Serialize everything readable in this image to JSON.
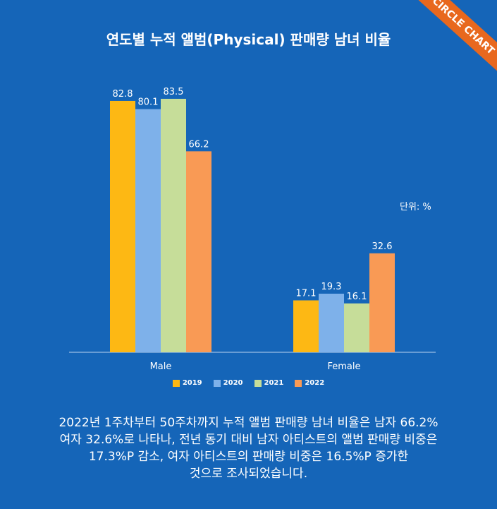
{
  "header": {
    "title": "연도별 누적 앨범(Physical) 판매량 남녀 비율",
    "brand": "CIRCLE CHART"
  },
  "colors": {
    "background": "#1565b8",
    "series": [
      "#fdb814",
      "#7eb1ea",
      "#c6dd99",
      "#f99a55"
    ],
    "ribbon": "#e8681e"
  },
  "chart_data": {
    "type": "bar",
    "title": "연도별 누적 앨범(Physical) 판매량 남녀 비율",
    "unit_label": "단위: %",
    "categories": [
      "Male",
      "Female"
    ],
    "series": [
      {
        "name": "2019",
        "values": [
          82.8,
          17.1
        ]
      },
      {
        "name": "2020",
        "values": [
          80.1,
          19.3
        ]
      },
      {
        "name": "2021",
        "values": [
          83.5,
          16.1
        ]
      },
      {
        "name": "2022",
        "values": [
          66.2,
          32.6
        ]
      }
    ],
    "ylim": [
      0,
      100
    ],
    "grid": false,
    "legend_position": "bottom"
  },
  "caption": {
    "lines": [
      "2022년 1주차부터 50주차까지 누적 앨범 판매량 남녀 비율은 남자 66.2%",
      "여자 32.6%로 나타나, 전년 동기 대비 남자 아티스트의 앨범 판매량 비중은",
      "17.3%P 감소, 여자 아티스트의 판매량 비중은 16.5%P 증가한",
      "것으로 조사되었습니다."
    ]
  }
}
